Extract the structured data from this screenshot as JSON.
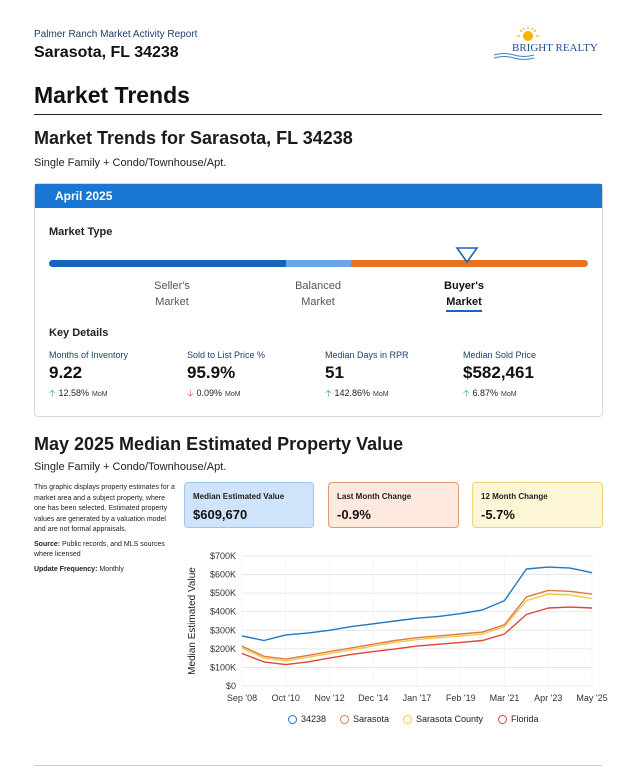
{
  "header": {
    "report_title": "Palmer Ranch Market Activity Report",
    "location": "Sarasota, FL 34238",
    "logo_text": "BRIGHT REALTY"
  },
  "page_title": "Market Trends",
  "section1": {
    "title": "Market Trends for Sarasota, FL 34238",
    "subtitle": "Single Family + Condo/Townhouse/Apt.",
    "card_header": "April 2025",
    "market_type_title": "Market Type",
    "market_labels": {
      "sellers_line1": "Seller's",
      "sellers_line2": "Market",
      "balanced_line1": "Balanced",
      "balanced_line2": "Market",
      "buyers_line1": "Buyer's",
      "buyers_line2": "Market"
    },
    "market_indicator": "Buyer's Market",
    "key_details_title": "Key Details",
    "key_details": [
      {
        "label": "Months of Inventory",
        "value": "9.22",
        "change": "12.58%",
        "direction": "up",
        "period": "MoM"
      },
      {
        "label": "Sold to List Price %",
        "value": "95.9%",
        "change": "0.09%",
        "direction": "down",
        "period": "MoM"
      },
      {
        "label": "Median Days in RPR",
        "value": "51",
        "change": "142.86%",
        "direction": "up",
        "period": "MoM"
      },
      {
        "label": "Median Sold Price",
        "value": "$582,461",
        "change": "6.87%",
        "direction": "up",
        "period": "MoM"
      }
    ]
  },
  "section2": {
    "title": "May 2025 Median Estimated Property Value",
    "subtitle": "Single Family + Condo/Townhouse/Apt.",
    "description": "This graphic displays property estimates for a market area and a subject property, where one has been selected. Estimated property values are generated by a valuation model and are not formal appraisals.",
    "source_label": "Source:",
    "source_text": "Public records, and MLS sources where licensed",
    "frequency_label": "Update Frequency:",
    "frequency_text": "Monthly",
    "stats": [
      {
        "label": "Median Estimated Value",
        "value": "$609,670"
      },
      {
        "label": "Last Month Change",
        "value": "-0.9%"
      },
      {
        "label": "12 Month Change",
        "value": "-5.7%"
      }
    ]
  },
  "colors": {
    "primary_blue": "#1976d2",
    "sellers_bar": "#1565c0",
    "balanced_bar": "#6aa6e6",
    "buyers_bar": "#e8731e",
    "up_arrow": "#2e9e4f",
    "down_arrow": "#dd3333"
  },
  "chart_data": {
    "type": "line",
    "ylabel": "Median Estimated Value",
    "xlabel": "",
    "ylim": [
      0,
      700000
    ],
    "y_ticks": [
      "$0",
      "$100K",
      "$200K",
      "$300K",
      "$400K",
      "$500K",
      "$600K",
      "$700K"
    ],
    "x_ticks": [
      "Sep '08",
      "Oct '10",
      "Nov '12",
      "Dec '14",
      "Jan '17",
      "Feb '19",
      "Mar '21",
      "Apr '23",
      "May '25"
    ],
    "x": [
      "Sep '08",
      "Sep '09",
      "Oct '10",
      "Oct '11",
      "Nov '12",
      "Nov '13",
      "Dec '14",
      "Dec '15",
      "Jan '17",
      "Jan '18",
      "Feb '19",
      "Feb '20",
      "Mar '21",
      "Mar '22",
      "Apr '23",
      "Apr '24",
      "May '25"
    ],
    "grid": true,
    "legend_position": "bottom",
    "series": [
      {
        "name": "34238",
        "color": "#1f77c4",
        "values": [
          270000,
          245000,
          275000,
          285000,
          300000,
          320000,
          335000,
          350000,
          365000,
          375000,
          390000,
          410000,
          460000,
          630000,
          640000,
          635000,
          610000
        ]
      },
      {
        "name": "Sarasota",
        "color": "#e07b39",
        "values": [
          215000,
          160000,
          145000,
          165000,
          185000,
          205000,
          225000,
          245000,
          260000,
          270000,
          280000,
          290000,
          330000,
          480000,
          515000,
          510000,
          495000
        ]
      },
      {
        "name": "Sarasota County",
        "color": "#f2c94c",
        "values": [
          205000,
          150000,
          135000,
          155000,
          175000,
          195000,
          215000,
          235000,
          250000,
          260000,
          270000,
          280000,
          320000,
          460000,
          495000,
          490000,
          470000
        ]
      },
      {
        "name": "Florida",
        "color": "#e0443b",
        "values": [
          175000,
          130000,
          115000,
          130000,
          150000,
          170000,
          185000,
          200000,
          215000,
          225000,
          235000,
          245000,
          280000,
          385000,
          420000,
          425000,
          420000
        ]
      }
    ]
  }
}
